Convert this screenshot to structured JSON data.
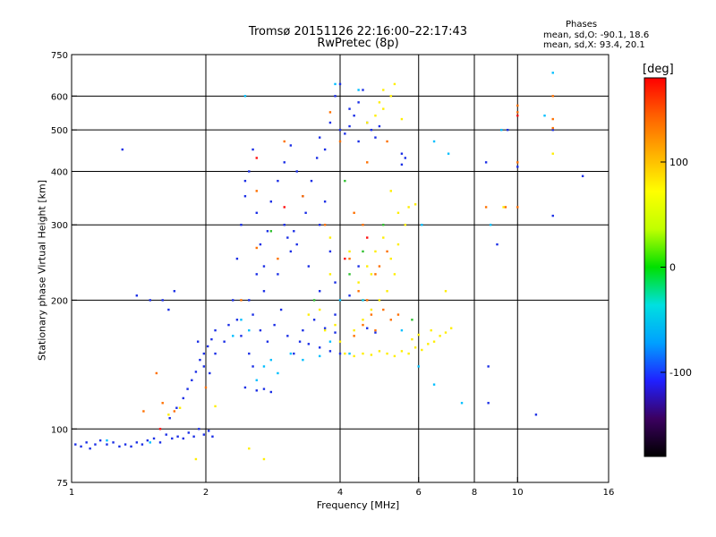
{
  "title_line1": "Tromsø 20151126 22:16:00–22:17:43",
  "title_line2": "RwPretec (8p)",
  "phase_note": {
    "heading": "Phases",
    "line_o": "mean, sd,O: -90.1, 18.6",
    "line_x": "mean, sd,X:  93.4, 20.1"
  },
  "colorbar": {
    "label": "[deg]",
    "ticks": [
      "100",
      "0",
      "-100"
    ],
    "tick_values": [
      100,
      0,
      -100
    ],
    "range": [
      -180,
      180
    ],
    "colors": [
      "#000000",
      "#3b0060",
      "#2020ff",
      "#00a0ff",
      "#00e0e0",
      "#00e000",
      "#c0ff00",
      "#ffff00",
      "#ffb000",
      "#ff6000",
      "#ff0000"
    ]
  },
  "chart_data": {
    "type": "scatter",
    "xlabel": "Frequency [MHz]",
    "ylabel": "Stationary phase Virtual Height [km]",
    "xscale": "log",
    "yscale": "log",
    "xlim": [
      1,
      16
    ],
    "ylim": [
      75,
      750
    ],
    "xticks": [
      1,
      2,
      4,
      6,
      8,
      10,
      16
    ],
    "xtick_labels": [
      "1",
      "2",
      "4",
      "6",
      "8",
      "10",
      "16"
    ],
    "xgrid": [
      2,
      4,
      6,
      8,
      10
    ],
    "yticks": [
      75,
      100,
      200,
      300,
      400,
      500,
      600,
      750
    ],
    "ytick_labels": [
      "75",
      "100",
      "200",
      "300",
      "400",
      "500",
      "600",
      "750"
    ],
    "ygrid": [
      100,
      200,
      300,
      400,
      500,
      600
    ],
    "grid": true,
    "series": [
      {
        "color": "#1a2ee6",
        "points": [
          [
            1.02,
            92
          ],
          [
            1.05,
            91
          ],
          [
            1.08,
            93
          ],
          [
            1.1,
            90
          ],
          [
            1.13,
            92
          ],
          [
            1.16,
            94
          ],
          [
            1.2,
            92
          ],
          [
            1.24,
            93
          ],
          [
            1.28,
            91
          ],
          [
            1.32,
            92
          ],
          [
            1.36,
            91
          ],
          [
            1.4,
            93
          ],
          [
            1.44,
            92
          ],
          [
            1.48,
            94
          ],
          [
            1.53,
            95
          ],
          [
            1.58,
            93
          ],
          [
            1.63,
            97
          ],
          [
            1.68,
            95
          ],
          [
            1.73,
            96
          ],
          [
            1.78,
            95
          ],
          [
            1.83,
            98
          ],
          [
            1.88,
            96
          ],
          [
            1.93,
            100
          ],
          [
            1.98,
            97
          ],
          [
            2.03,
            99
          ],
          [
            2.07,
            96
          ],
          [
            1.66,
            106
          ],
          [
            1.72,
            112
          ],
          [
            1.78,
            118
          ],
          [
            1.82,
            124
          ],
          [
            1.86,
            130
          ],
          [
            1.9,
            136
          ],
          [
            1.94,
            145
          ],
          [
            1.98,
            150
          ],
          [
            2.02,
            156
          ],
          [
            2.06,
            162
          ],
          [
            2.1,
            170
          ],
          [
            1.92,
            160
          ],
          [
            1.98,
            140
          ],
          [
            2.04,
            135
          ],
          [
            2.1,
            150
          ],
          [
            2.2,
            160
          ],
          [
            2.25,
            175
          ],
          [
            2.3,
            200
          ],
          [
            2.35,
            180
          ],
          [
            2.4,
            165
          ],
          [
            2.5,
            150
          ],
          [
            2.55,
            140
          ],
          [
            2.45,
            125
          ],
          [
            2.6,
            123
          ],
          [
            2.7,
            124
          ],
          [
            2.8,
            122
          ],
          [
            2.55,
            185
          ],
          [
            2.65,
            170
          ],
          [
            2.75,
            160
          ],
          [
            2.85,
            175
          ],
          [
            2.95,
            190
          ],
          [
            3.05,
            165
          ],
          [
            3.15,
            150
          ],
          [
            3.25,
            160
          ],
          [
            3.4,
            158
          ],
          [
            3.6,
            155
          ],
          [
            3.8,
            152
          ],
          [
            4.0,
            150
          ],
          [
            3.3,
            170
          ],
          [
            3.5,
            180
          ],
          [
            3.7,
            172
          ],
          [
            3.9,
            168
          ],
          [
            2.35,
            250
          ],
          [
            2.4,
            300
          ],
          [
            2.45,
            350
          ],
          [
            2.5,
            400
          ],
          [
            2.55,
            450
          ],
          [
            2.45,
            380
          ],
          [
            2.6,
            320
          ],
          [
            2.65,
            270
          ],
          [
            2.7,
            240
          ],
          [
            2.75,
            290
          ],
          [
            2.8,
            340
          ],
          [
            2.9,
            380
          ],
          [
            3.0,
            420
          ],
          [
            3.1,
            460
          ],
          [
            3.2,
            400
          ],
          [
            3.3,
            350
          ],
          [
            3.0,
            300
          ],
          [
            3.05,
            280
          ],
          [
            3.1,
            260
          ],
          [
            3.15,
            290
          ],
          [
            3.2,
            270
          ],
          [
            3.35,
            320
          ],
          [
            3.45,
            380
          ],
          [
            3.55,
            430
          ],
          [
            3.6,
            300
          ],
          [
            3.7,
            340
          ],
          [
            3.8,
            260
          ],
          [
            3.9,
            220
          ],
          [
            2.9,
            230
          ],
          [
            2.7,
            210
          ],
          [
            3.4,
            240
          ],
          [
            3.6,
            210
          ],
          [
            2.5,
            200
          ],
          [
            2.6,
            230
          ],
          [
            3.6,
            480
          ],
          [
            3.8,
            520
          ],
          [
            4.0,
            500
          ],
          [
            4.1,
            490
          ],
          [
            4.2,
            510
          ],
          [
            4.3,
            540
          ],
          [
            4.4,
            580
          ],
          [
            4.5,
            620
          ],
          [
            4.0,
            640
          ],
          [
            3.9,
            600
          ],
          [
            4.2,
            560
          ],
          [
            3.7,
            450
          ],
          [
            4.6,
            520
          ],
          [
            4.7,
            500
          ],
          [
            4.8,
            480
          ],
          [
            4.9,
            510
          ],
          [
            4.4,
            470
          ],
          [
            5.5,
            440
          ],
          [
            5.6,
            430
          ],
          [
            5.5,
            415
          ],
          [
            4.4,
            240
          ],
          [
            4.2,
            205
          ],
          [
            3.9,
            185
          ],
          [
            4.6,
            172
          ],
          [
            4.8,
            168
          ],
          [
            1.6,
            200
          ],
          [
            1.65,
            190
          ],
          [
            1.7,
            210
          ],
          [
            1.5,
            200
          ],
          [
            1.4,
            205
          ],
          [
            1.3,
            450
          ],
          [
            9.5,
            500
          ],
          [
            12,
            500
          ],
          [
            8.5,
            420
          ],
          [
            10,
            410
          ],
          [
            8.6,
            140
          ],
          [
            8.6,
            115
          ],
          [
            9,
            270
          ],
          [
            11,
            108
          ],
          [
            12,
            315
          ],
          [
            14,
            390
          ]
        ]
      },
      {
        "color": "#ffee00",
        "points": [
          [
            4.1,
            150
          ],
          [
            4.3,
            148
          ],
          [
            4.5,
            150
          ],
          [
            4.7,
            149
          ],
          [
            4.9,
            152
          ],
          [
            5.1,
            150
          ],
          [
            5.3,
            148
          ],
          [
            5.5,
            152
          ],
          [
            5.7,
            150
          ],
          [
            5.9,
            155
          ],
          [
            6.1,
            153
          ],
          [
            6.3,
            158
          ],
          [
            6.5,
            160
          ],
          [
            6.7,
            165
          ],
          [
            6.9,
            168
          ],
          [
            7.1,
            172
          ],
          [
            5.8,
            162
          ],
          [
            6.0,
            166
          ],
          [
            4.3,
            170
          ],
          [
            4.5,
            180
          ],
          [
            4.7,
            190
          ],
          [
            4.9,
            200
          ],
          [
            5.1,
            210
          ],
          [
            4.4,
            220
          ],
          [
            4.6,
            240
          ],
          [
            4.8,
            260
          ],
          [
            5.0,
            280
          ],
          [
            5.2,
            250
          ],
          [
            5.3,
            230
          ],
          [
            4.5,
            200
          ],
          [
            4.7,
            230
          ],
          [
            5.4,
            270
          ],
          [
            5.6,
            300
          ],
          [
            5.4,
            320
          ],
          [
            5.7,
            330
          ],
          [
            5.9,
            335
          ],
          [
            5.2,
            360
          ],
          [
            4.6,
            520
          ],
          [
            4.8,
            540
          ],
          [
            5.0,
            560
          ],
          [
            5.2,
            600
          ],
          [
            5.3,
            640
          ],
          [
            5.0,
            620
          ],
          [
            5.5,
            530
          ],
          [
            4.9,
            580
          ],
          [
            3.7,
            170
          ],
          [
            3.9,
            175
          ],
          [
            4.0,
            160
          ],
          [
            3.4,
            185
          ],
          [
            3.6,
            190
          ],
          [
            3.8,
            230
          ],
          [
            4.2,
            260
          ],
          [
            3.8,
            280
          ],
          [
            6.9,
            210
          ],
          [
            6.4,
            170
          ],
          [
            2.5,
            90
          ],
          [
            2.7,
            85
          ],
          [
            1.65,
            108
          ],
          [
            1.75,
            112
          ],
          [
            2.1,
            113
          ],
          [
            1.9,
            85
          ],
          [
            9.3,
            330
          ],
          [
            12,
            440
          ]
        ]
      },
      {
        "color": "#ff7000",
        "points": [
          [
            4.3,
            165
          ],
          [
            4.5,
            175
          ],
          [
            4.7,
            185
          ],
          [
            4.6,
            200
          ],
          [
            4.8,
            170
          ],
          [
            5.0,
            190
          ],
          [
            4.4,
            210
          ],
          [
            5.2,
            180
          ],
          [
            5.4,
            185
          ],
          [
            4.8,
            230
          ],
          [
            5.1,
            260
          ],
          [
            4.9,
            240
          ],
          [
            4.2,
            250
          ],
          [
            4.5,
            300
          ],
          [
            4.3,
            320
          ],
          [
            5.1,
            470
          ],
          [
            4.6,
            420
          ],
          [
            4.0,
            470
          ],
          [
            3.8,
            550
          ],
          [
            3.7,
            300
          ],
          [
            3.3,
            350
          ],
          [
            3.0,
            470
          ],
          [
            2.9,
            250
          ],
          [
            2.6,
            265
          ],
          [
            2.6,
            360
          ],
          [
            2.4,
            200
          ],
          [
            1.6,
            115
          ],
          [
            1.7,
            110
          ],
          [
            1.55,
            135
          ],
          [
            1.45,
            110
          ],
          [
            2.0,
            125
          ],
          [
            10,
            570
          ],
          [
            10,
            330
          ],
          [
            10,
            420
          ],
          [
            9.4,
            330
          ],
          [
            12,
            600
          ],
          [
            12,
            530
          ],
          [
            12,
            505
          ],
          [
            10,
            550
          ],
          [
            8.5,
            330
          ]
        ]
      },
      {
        "color": "#00bfff",
        "points": [
          [
            2.6,
            130
          ],
          [
            2.7,
            140
          ],
          [
            2.8,
            145
          ],
          [
            2.9,
            135
          ],
          [
            3.1,
            150
          ],
          [
            3.3,
            145
          ],
          [
            3.6,
            148
          ],
          [
            3.8,
            160
          ],
          [
            4.0,
            200
          ],
          [
            4.2,
            150
          ],
          [
            4.5,
            200
          ],
          [
            5.5,
            170
          ],
          [
            2.3,
            165
          ],
          [
            2.4,
            180
          ],
          [
            2.5,
            170
          ],
          [
            6.0,
            140
          ],
          [
            6.5,
            127
          ],
          [
            7.5,
            115
          ],
          [
            6.1,
            300
          ],
          [
            6.5,
            470
          ],
          [
            7.0,
            440
          ],
          [
            9.2,
            500
          ],
          [
            8.7,
            300
          ],
          [
            12,
            680
          ],
          [
            11.5,
            540
          ],
          [
            1.2,
            94
          ],
          [
            1.5,
            93
          ],
          [
            2.45,
            600
          ],
          [
            3.9,
            640
          ],
          [
            4.4,
            620
          ]
        ]
      },
      {
        "color": "#30c030",
        "points": [
          [
            4.5,
            260
          ],
          [
            5.0,
            300
          ],
          [
            4.2,
            230
          ],
          [
            3.5,
            200
          ],
          [
            2.8,
            290
          ],
          [
            5.8,
            180
          ],
          [
            4.1,
            380
          ]
        ]
      },
      {
        "color": "#ff1010",
        "points": [
          [
            4.1,
            250
          ],
          [
            4.6,
            280
          ],
          [
            2.6,
            430
          ],
          [
            3.0,
            330
          ],
          [
            1.58,
            100
          ],
          [
            10,
            540
          ]
        ]
      }
    ]
  }
}
